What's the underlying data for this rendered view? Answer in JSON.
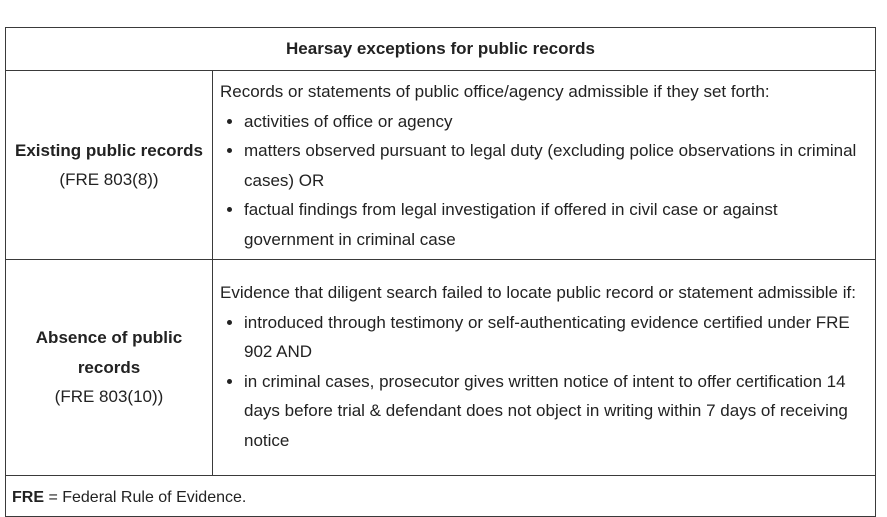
{
  "table": {
    "title": "Hearsay exceptions for public records",
    "rows": [
      {
        "label": "Existing public records",
        "reference": "(FRE 803(8))",
        "intro": "Records or statements of public office/agency admissible if they set forth:",
        "items": [
          "activities of office or agency",
          "matters observed pursuant to legal duty (excluding police observations in criminal cases) OR",
          "factual findings from legal investigation if offered in civil case or against government in criminal case"
        ]
      },
      {
        "label": "Absence of public records",
        "reference": "(FRE 803(10))",
        "intro": "Evidence that diligent search failed to locate public record or statement admissible if:",
        "items": [
          "introduced through testimony or self-authenticating evidence certified under FRE 902 AND",
          "in criminal cases, prosecutor gives written notice of intent to offer certification 14 days before trial & defendant does not object in writing within 7 days of receiving notice"
        ]
      }
    ],
    "footer": {
      "term": "FRE",
      "definition": " = Federal Rule of Evidence."
    }
  }
}
